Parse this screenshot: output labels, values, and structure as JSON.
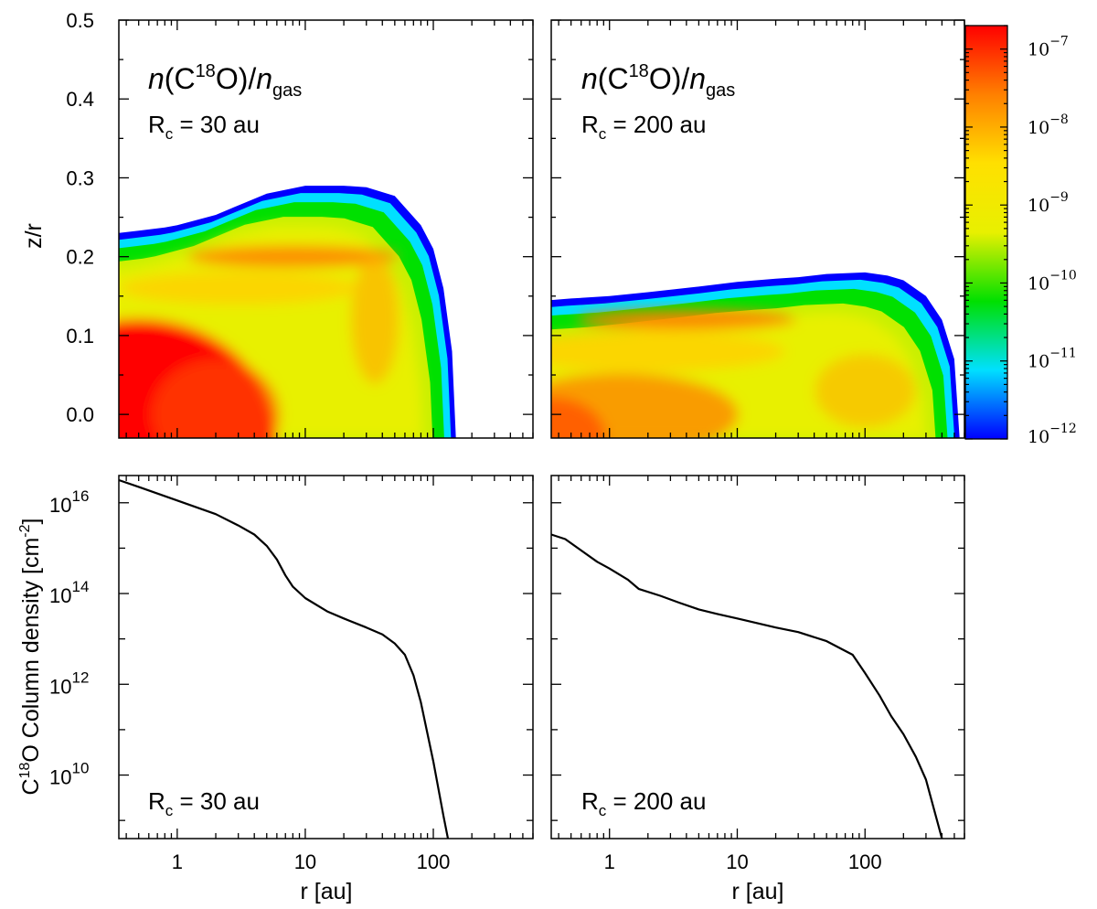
{
  "figure": {
    "top_ylabel": "z/r",
    "bottom_ylabel": "C<sup>18</sup>O Column density [cm<sup>-2</sup>]",
    "xlabel": "r [au]"
  },
  "colors": {
    "colormap": [
      "#0000ff",
      "#00e0ff",
      "#00e000",
      "#e8f000",
      "#ffe000",
      "#ff8000",
      "#ff0000"
    ],
    "line": "#000000",
    "frame": "#000000"
  },
  "chart_data": [
    {
      "id": "abundance-rc30",
      "type": "heatmap",
      "title_parts": {
        "n": "n",
        "open": "(C",
        "sup": "18",
        "close": "O)/",
        "nsub": "n",
        "sub": "gas"
      },
      "annotation": {
        "R": "R",
        "sub": "c",
        "rest": " = 30 au"
      },
      "xscale": "log",
      "xlim": [
        0.35,
        600
      ],
      "ylabel": "z/r",
      "ylim": [
        -0.03,
        0.5
      ],
      "yticks": [
        0.0,
        0.1,
        0.2,
        0.3,
        0.4,
        0.5
      ],
      "ytick_labels": [
        "0.0",
        "0.1",
        "0.2",
        "0.3",
        "0.4",
        "0.5"
      ],
      "surface_boundary": {
        "r": [
          0.35,
          0.5,
          0.8,
          1.0,
          2.0,
          3.0,
          5.0,
          10,
          20,
          30,
          50,
          80,
          100,
          120,
          140,
          150
        ],
        "z": [
          0.23,
          0.233,
          0.237,
          0.24,
          0.253,
          0.265,
          0.28,
          0.29,
          0.29,
          0.288,
          0.277,
          0.24,
          0.21,
          0.16,
          0.08,
          -0.03
        ]
      },
      "colorbar": {
        "scale": "log",
        "range": [
          1e-12,
          2e-07
        ]
      }
    },
    {
      "id": "abundance-rc200",
      "type": "heatmap",
      "title_parts": {
        "n": "n",
        "open": "(C",
        "sup": "18",
        "close": "O)/",
        "nsub": "n",
        "sub": "gas"
      },
      "annotation": {
        "R": "R",
        "sub": "c",
        "rest": " = 200 au"
      },
      "xscale": "log",
      "xlim": [
        0.35,
        600
      ],
      "ylim": [
        -0.03,
        0.5
      ],
      "surface_boundary": {
        "r": [
          0.35,
          0.5,
          1.0,
          2.0,
          5.0,
          10,
          20,
          30,
          50,
          100,
          150,
          200,
          300,
          400,
          500,
          550
        ],
        "z": [
          0.145,
          0.147,
          0.15,
          0.155,
          0.162,
          0.168,
          0.172,
          0.174,
          0.178,
          0.18,
          0.176,
          0.17,
          0.15,
          0.12,
          0.07,
          -0.03
        ]
      },
      "colorbar": {
        "scale": "log",
        "range": [
          1e-12,
          2e-07
        ],
        "ticks": [
          1e-07,
          1e-08,
          1e-09,
          1e-10,
          1e-11,
          1e-12
        ],
        "tick_mantissa": [
          "10",
          "10",
          "10",
          "10",
          "10",
          "10"
        ],
        "tick_exponents": [
          "−7",
          "−8",
          "−9",
          "−10",
          "−11",
          "−12"
        ]
      }
    },
    {
      "id": "column-rc30",
      "type": "line",
      "annotation": {
        "R": "R",
        "sub": "c",
        "rest": " = 30 au"
      },
      "xscale": "log",
      "xlim": [
        0.35,
        600
      ],
      "yscale": "log",
      "ylim_log10": [
        8.6,
        16.6
      ],
      "ytick_exponents": [
        "10",
        "12",
        "14",
        "16"
      ],
      "ytick_base": "10",
      "xticks": [
        1,
        10,
        100
      ],
      "xtick_labels": [
        "1",
        "10",
        "100"
      ],
      "series": [
        {
          "name": "C18O column density",
          "x": [
            0.35,
            0.5,
            1.0,
            2.0,
            3.0,
            4.0,
            5.0,
            6.0,
            7.0,
            8.0,
            10,
            15,
            20,
            30,
            40,
            50,
            60,
            70,
            80,
            100,
            120,
            130
          ],
          "log10_y": [
            16.5,
            16.35,
            16.05,
            15.75,
            15.5,
            15.3,
            15.05,
            14.75,
            14.4,
            14.15,
            13.9,
            13.6,
            13.45,
            13.25,
            13.1,
            12.9,
            12.65,
            12.2,
            11.6,
            10.3,
            9.1,
            8.6
          ]
        }
      ]
    },
    {
      "id": "column-rc200",
      "type": "line",
      "annotation": {
        "R": "R",
        "sub": "c",
        "rest": " = 200 au"
      },
      "xscale": "log",
      "xlim": [
        0.35,
        600
      ],
      "yscale": "log",
      "ylim_log10": [
        8.6,
        16.6
      ],
      "xticks": [
        1,
        10,
        100
      ],
      "xtick_labels": [
        "1",
        "10",
        "100"
      ],
      "series": [
        {
          "name": "C18O column density",
          "x": [
            0.35,
            0.45,
            0.6,
            0.8,
            1.0,
            1.4,
            1.7,
            2.5,
            3.5,
            5.0,
            7.0,
            10,
            20,
            30,
            50,
            80,
            100,
            130,
            160,
            200,
            250,
            300,
            350,
            400
          ],
          "log10_y": [
            15.3,
            15.2,
            14.95,
            14.7,
            14.55,
            14.3,
            14.1,
            13.95,
            13.8,
            13.65,
            13.55,
            13.45,
            13.25,
            13.15,
            12.95,
            12.65,
            12.25,
            11.75,
            11.3,
            10.9,
            10.4,
            9.9,
            9.2,
            8.6
          ]
        }
      ]
    }
  ]
}
